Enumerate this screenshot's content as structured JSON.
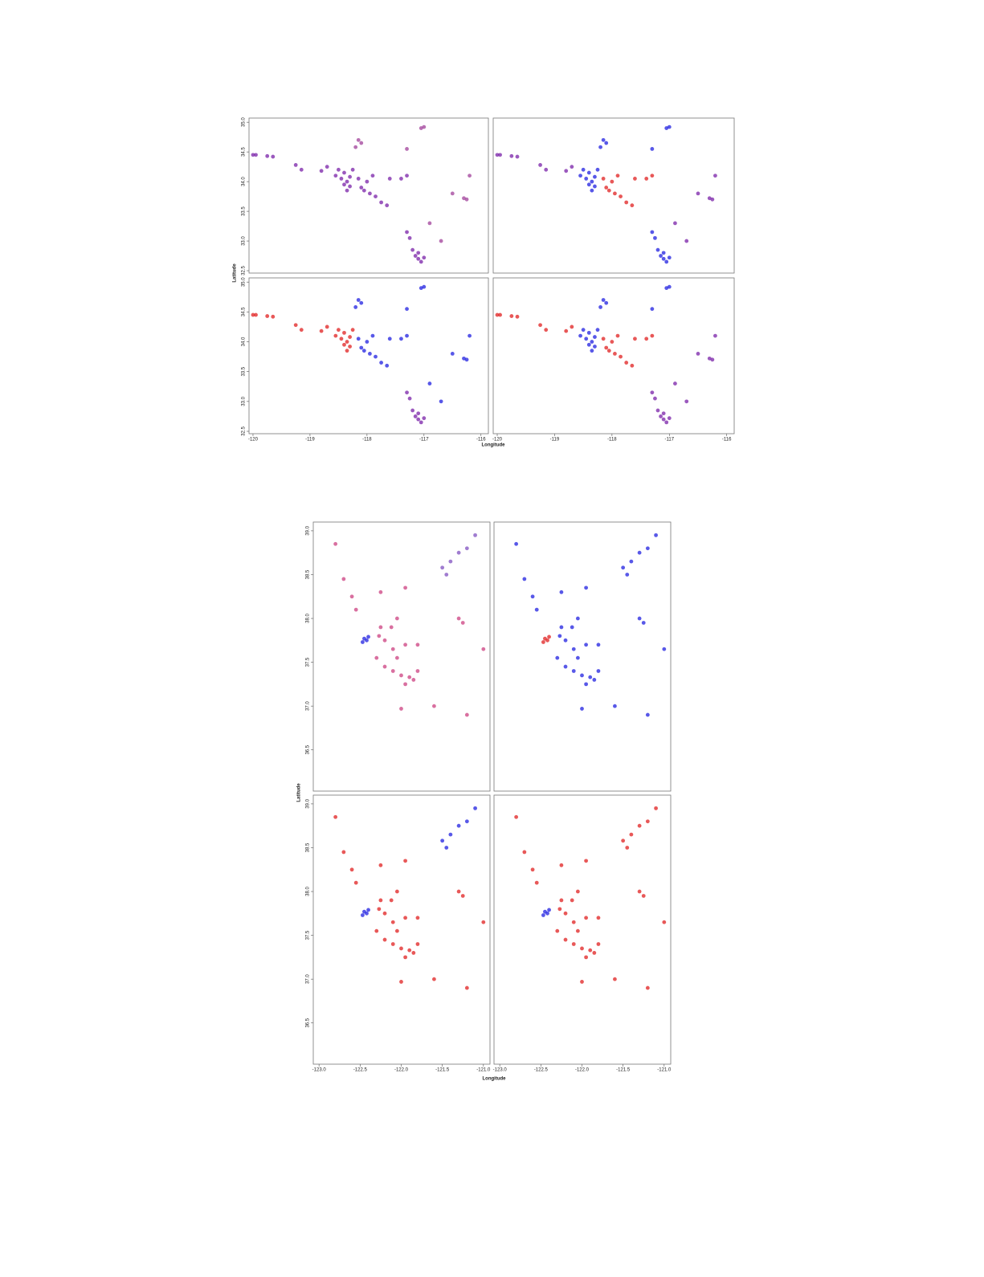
{
  "chart_data": [
    {
      "type": "scatter",
      "xlim": [
        -120.07,
        -115.87
      ],
      "ylim": [
        32.46,
        35.07
      ],
      "yticks": [
        {
          "value": 35,
          "label": "35.0"
        },
        34.5,
        {
          "value": 34,
          "label": "34.0"
        },
        33.5,
        {
          "value": 33,
          "label": "33.0"
        },
        32.5
      ],
      "series": [
        {
          "color": "#7a22a8",
          "x": [
            -118.45,
            -118.4,
            -118.35,
            -118.3,
            -118.3,
            -118.25,
            -118.4,
            -118.5,
            -118.55,
            -118.35,
            -118.15,
            -118.1,
            -118.0,
            -117.95,
            -117.85,
            -117.75,
            -117.9,
            -118.05,
            -117.6,
            -117.4,
            -117.3,
            -117.65,
            -119.75,
            -119.65,
            -119.25,
            -119.15,
            -118.8,
            -118.7,
            -120.0,
            -119.95,
            -117.15,
            -117.1,
            -117.2,
            -117.05,
            -117.25,
            -117.3,
            -117.1,
            -117.0
          ],
          "y": [
            34.05,
            34.15,
            34.0,
            34.08,
            33.92,
            34.2,
            33.95,
            34.2,
            34.1,
            33.85,
            34.05,
            33.9,
            34.0,
            33.8,
            33.75,
            33.65,
            34.1,
            33.85,
            34.05,
            34.05,
            34.1,
            33.6,
            34.43,
            34.42,
            34.28,
            34.2,
            34.18,
            34.25,
            34.45,
            34.45,
            32.75,
            32.7,
            32.85,
            32.65,
            33.05,
            33.15,
            32.8,
            32.72
          ]
        },
        {
          "color": "#a0409a",
          "x": [
            -118.15,
            -118.1,
            -117.3,
            -117.05,
            -117.0,
            -118.2,
            -116.5,
            -116.3,
            -116.25,
            -116.9,
            -116.7,
            -116.2
          ],
          "y": [
            34.7,
            34.65,
            34.55,
            34.9,
            34.92,
            34.58,
            33.8,
            33.72,
            33.7,
            33.3,
            33.0,
            34.1
          ]
        }
      ]
    },
    {
      "type": "scatter",
      "xlim": [
        -120.07,
        -115.87
      ],
      "ylim": [
        32.46,
        35.07
      ],
      "series": [
        {
          "color": "#2020e0",
          "x": [
            -118.45,
            -118.4,
            -118.35,
            -118.3,
            -118.3,
            -118.25,
            -118.4,
            -118.5,
            -118.55,
            -118.35,
            -117.15,
            -117.1,
            -117.2,
            -117.05,
            -117.25,
            -117.3,
            -117.1,
            -117.0,
            -118.15,
            -118.1,
            -117.3,
            -117.05,
            -117.0,
            -118.2
          ],
          "y": [
            34.05,
            34.15,
            34.0,
            34.08,
            33.92,
            34.2,
            33.95,
            34.2,
            34.1,
            33.85,
            32.75,
            32.7,
            32.85,
            32.65,
            33.05,
            33.15,
            32.8,
            32.72,
            34.7,
            34.65,
            34.55,
            34.9,
            34.92,
            34.58
          ]
        },
        {
          "color": "#e02020",
          "x": [
            -118.15,
            -118.1,
            -118.0,
            -117.95,
            -117.85,
            -117.75,
            -117.9,
            -118.05,
            -117.6,
            -117.4,
            -117.3,
            -117.65
          ],
          "y": [
            34.05,
            33.9,
            34.0,
            33.8,
            33.75,
            33.65,
            34.1,
            33.85,
            34.05,
            34.05,
            34.1,
            33.6
          ]
        },
        {
          "color": "#7a22a8",
          "x": [
            -119.75,
            -119.65,
            -119.25,
            -119.15,
            -118.8,
            -118.7,
            -120.0,
            -119.95,
            -116.5,
            -116.3,
            -116.25,
            -116.9,
            -116.7,
            -116.2
          ],
          "y": [
            34.43,
            34.42,
            34.28,
            34.2,
            34.18,
            34.25,
            34.45,
            34.45,
            33.8,
            33.72,
            33.7,
            33.3,
            33.0,
            34.1
          ]
        }
      ]
    },
    {
      "type": "scatter",
      "xlim": [
        -120.07,
        -115.87
      ],
      "ylim": [
        32.46,
        35.07
      ],
      "xticks": [
        -120,
        -119,
        -118,
        -117,
        -116
      ],
      "yticks": [
        {
          "value": 35,
          "label": "35.0"
        },
        34.5,
        {
          "value": 34,
          "label": "34.0"
        },
        33.5,
        {
          "value": 33,
          "label": "33.0"
        },
        32.5
      ],
      "xlabel": "Longitude",
      "ylabel": "Latitude",
      "series": [
        {
          "color": "#e02020",
          "x": [
            -118.45,
            -118.4,
            -118.35,
            -118.3,
            -118.3,
            -118.25,
            -118.4,
            -118.5,
            -118.55,
            -118.35,
            -119.75,
            -119.65,
            -119.25,
            -119.15,
            -118.8,
            -118.7,
            -120.0,
            -119.95
          ],
          "y": [
            34.05,
            34.15,
            34.0,
            34.08,
            33.92,
            34.2,
            33.95,
            34.2,
            34.1,
            33.85,
            34.43,
            34.42,
            34.28,
            34.2,
            34.18,
            34.25,
            34.45,
            34.45
          ]
        },
        {
          "color": "#2020e0",
          "x": [
            -118.15,
            -118.1,
            -118.0,
            -117.95,
            -117.85,
            -117.75,
            -117.9,
            -118.05,
            -117.6,
            -117.4,
            -117.3,
            -117.65,
            -118.15,
            -118.1,
            -117.3,
            -117.05,
            -117.0,
            -118.2,
            -116.5,
            -116.3,
            -116.25,
            -116.9,
            -116.7,
            -116.2
          ],
          "y": [
            34.05,
            33.9,
            34.0,
            33.8,
            33.75,
            33.65,
            34.1,
            33.85,
            34.05,
            34.05,
            34.1,
            33.6,
            34.7,
            34.65,
            34.55,
            34.9,
            34.92,
            34.58,
            33.8,
            33.72,
            33.7,
            33.3,
            33.0,
            34.1
          ]
        },
        {
          "color": "#7a22a8",
          "x": [
            -117.15,
            -117.1,
            -117.2,
            -117.05,
            -117.25,
            -117.3,
            -117.1,
            -117.0
          ],
          "y": [
            32.75,
            32.7,
            32.85,
            32.65,
            33.05,
            33.15,
            32.8,
            32.72
          ]
        }
      ]
    },
    {
      "type": "scatter",
      "xlim": [
        -120.07,
        -115.87
      ],
      "ylim": [
        32.46,
        35.07
      ],
      "xticks": [
        -120,
        -119,
        -118,
        -117,
        -116
      ],
      "series": [
        {
          "color": "#2020e0",
          "x": [
            -118.45,
            -118.4,
            -118.35,
            -118.3,
            -118.3,
            -118.25,
            -118.4,
            -118.5,
            -118.55,
            -118.35,
            -118.15,
            -118.1,
            -117.3,
            -117.05,
            -117.0,
            -118.2
          ],
          "y": [
            34.05,
            34.15,
            34.0,
            34.08,
            33.92,
            34.2,
            33.95,
            34.2,
            34.1,
            33.85,
            34.7,
            34.65,
            34.55,
            34.9,
            34.92,
            34.58
          ]
        },
        {
          "color": "#e02020",
          "x": [
            -118.15,
            -118.1,
            -118.0,
            -117.95,
            -117.85,
            -117.75,
            -117.9,
            -118.05,
            -117.6,
            -117.4,
            -117.3,
            -117.65,
            -119.75,
            -119.65,
            -119.25,
            -119.15,
            -118.8,
            -118.7,
            -120.0,
            -119.95
          ],
          "y": [
            34.05,
            33.9,
            34.0,
            33.8,
            33.75,
            33.65,
            34.1,
            33.85,
            34.05,
            34.05,
            34.1,
            33.6,
            34.43,
            34.42,
            34.28,
            34.2,
            34.18,
            34.25,
            34.45,
            34.45
          ]
        },
        {
          "color": "#7a22a8",
          "x": [
            -117.15,
            -117.1,
            -117.2,
            -117.05,
            -117.25,
            -117.3,
            -117.1,
            -117.0,
            -116.5,
            -116.3,
            -116.25,
            -116.9,
            -116.7,
            -116.2
          ],
          "y": [
            32.75,
            32.7,
            32.85,
            32.65,
            33.05,
            33.15,
            32.8,
            32.72,
            33.8,
            33.72,
            33.7,
            33.3,
            33.0,
            34.1
          ]
        }
      ]
    },
    {
      "type": "scatter",
      "xlim": [
        -123.07,
        -120.92
      ],
      "ylim": [
        36.03,
        39.1
      ],
      "yticks": [
        {
          "value": 39,
          "label": "39.0"
        },
        38.5,
        {
          "value": 38,
          "label": "38.0"
        },
        37.5,
        {
          "value": 37,
          "label": "37.0"
        },
        36.5
      ],
      "series": [
        {
          "color": "#cc4080",
          "x": [
            -122.27,
            -122.2,
            -122.1,
            -122.05,
            -122.25,
            -122.12,
            -121.95,
            -121.8,
            -122.3,
            -122.2,
            -122.1,
            -122.0,
            -121.9,
            -121.85,
            -121.95,
            -121.8,
            -122.55,
            -122.7,
            -122.25,
            -121.95,
            -122.05,
            -122.6,
            -122.8,
            -122.0,
            -121.6,
            -121.2,
            -121.3,
            -121.0,
            -121.25
          ],
          "y": [
            37.8,
            37.75,
            37.65,
            37.55,
            37.9,
            37.9,
            37.7,
            37.7,
            37.55,
            37.45,
            37.4,
            37.35,
            37.33,
            37.3,
            37.25,
            37.4,
            38.1,
            38.45,
            38.3,
            38.35,
            38.0,
            38.25,
            38.85,
            36.97,
            37.0,
            36.9,
            38.0,
            37.65,
            37.95
          ]
        },
        {
          "color": "#2020e0",
          "x": [
            -122.45,
            -122.42,
            -122.4,
            -122.47
          ],
          "y": [
            37.77,
            37.75,
            37.79,
            37.73
          ]
        },
        {
          "color": "#8050c0",
          "x": [
            -121.5,
            -121.4,
            -121.3,
            -121.45,
            -121.2,
            -121.1
          ],
          "y": [
            38.58,
            38.65,
            38.75,
            38.5,
            38.8,
            38.95
          ]
        }
      ]
    },
    {
      "type": "scatter",
      "xlim": [
        -123.07,
        -120.92
      ],
      "ylim": [
        36.03,
        39.1
      ],
      "series": [
        {
          "color": "#2020e0",
          "x": [
            -122.27,
            -122.2,
            -122.1,
            -122.05,
            -122.25,
            -122.12,
            -121.95,
            -121.8,
            -122.3,
            -122.2,
            -122.1,
            -122.0,
            -121.9,
            -121.85,
            -121.95,
            -121.8,
            -122.55,
            -122.7,
            -122.25,
            -121.95,
            -122.05,
            -122.6,
            -122.8,
            -121.5,
            -121.4,
            -121.3,
            -121.45,
            -121.2,
            -121.1,
            -122.0,
            -121.6,
            -121.2,
            -121.3,
            -121.0,
            -121.25
          ],
          "y": [
            37.8,
            37.75,
            37.65,
            37.55,
            37.9,
            37.9,
            37.7,
            37.7,
            37.55,
            37.45,
            37.4,
            37.35,
            37.33,
            37.3,
            37.25,
            37.4,
            38.1,
            38.45,
            38.3,
            38.35,
            38.0,
            38.25,
            38.85,
            38.58,
            38.65,
            38.75,
            38.5,
            38.8,
            38.95,
            36.97,
            37.0,
            36.9,
            38.0,
            37.65,
            37.95
          ]
        },
        {
          "color": "#e02020",
          "x": [
            -122.45,
            -122.42,
            -122.4,
            -122.47
          ],
          "y": [
            37.77,
            37.75,
            37.79,
            37.73
          ]
        }
      ]
    },
    {
      "type": "scatter",
      "xlim": [
        -123.07,
        -120.92
      ],
      "ylim": [
        36.03,
        39.1
      ],
      "xticks": [
        {
          "value": -123,
          "label": "-123.0"
        },
        -122.5,
        {
          "value": -122,
          "label": "-122.0"
        },
        -121.5,
        {
          "value": -121,
          "label": "-121.0"
        }
      ],
      "yticks": [
        {
          "value": 39,
          "label": "39.0"
        },
        38.5,
        {
          "value": 38,
          "label": "38.0"
        },
        37.5,
        {
          "value": 37,
          "label": "37.0"
        },
        36.5
      ],
      "xlabel": "Longitude",
      "ylabel": "Latitude",
      "series": [
        {
          "color": "#e02020",
          "x": [
            -122.27,
            -122.2,
            -122.1,
            -122.05,
            -122.25,
            -122.12,
            -121.95,
            -121.8,
            -122.3,
            -122.2,
            -122.1,
            -122.0,
            -121.9,
            -121.85,
            -121.95,
            -121.8,
            -122.55,
            -122.7,
            -122.25,
            -121.95,
            -122.05,
            -122.6,
            -122.8,
            -122.0,
            -121.6,
            -121.2,
            -121.3,
            -121.0,
            -121.25
          ],
          "y": [
            37.8,
            37.75,
            37.65,
            37.55,
            37.9,
            37.9,
            37.7,
            37.7,
            37.55,
            37.45,
            37.4,
            37.35,
            37.33,
            37.3,
            37.25,
            37.4,
            38.1,
            38.45,
            38.3,
            38.35,
            38.0,
            38.25,
            38.85,
            36.97,
            37.0,
            36.9,
            38.0,
            37.65,
            37.95
          ]
        },
        {
          "color": "#2020e0",
          "x": [
            -122.45,
            -122.42,
            -122.4,
            -122.47,
            -121.5,
            -121.4,
            -121.3,
            -121.45,
            -121.2,
            -121.1
          ],
          "y": [
            37.77,
            37.75,
            37.79,
            37.73,
            38.58,
            38.65,
            38.75,
            38.5,
            38.8,
            38.95
          ]
        }
      ]
    },
    {
      "type": "scatter",
      "xlim": [
        -123.07,
        -120.92
      ],
      "ylim": [
        36.03,
        39.1
      ],
      "xticks": [
        {
          "value": -123,
          "label": "-123.0"
        },
        -122.5,
        {
          "value": -122,
          "label": "-122.0"
        },
        -121.5,
        {
          "value": -121,
          "label": "-121.0"
        }
      ],
      "series": [
        {
          "color": "#e02020",
          "x": [
            -122.27,
            -122.2,
            -122.1,
            -122.05,
            -122.25,
            -122.12,
            -121.95,
            -121.8,
            -122.3,
            -122.2,
            -122.1,
            -122.0,
            -121.9,
            -121.85,
            -121.95,
            -121.8,
            -122.55,
            -122.7,
            -122.25,
            -121.95,
            -122.05,
            -122.6,
            -122.8,
            -121.5,
            -121.4,
            -121.3,
            -121.45,
            -121.2,
            -121.1,
            -122.0,
            -121.6,
            -121.2,
            -121.3,
            -121.0,
            -121.25
          ],
          "y": [
            37.8,
            37.75,
            37.65,
            37.55,
            37.9,
            37.9,
            37.7,
            37.7,
            37.55,
            37.45,
            37.4,
            37.35,
            37.33,
            37.3,
            37.25,
            37.4,
            38.1,
            38.45,
            38.3,
            38.35,
            38.0,
            38.25,
            38.85,
            38.58,
            38.65,
            38.75,
            38.5,
            38.8,
            38.95,
            36.97,
            37.0,
            36.9,
            38.0,
            37.65,
            37.95
          ]
        },
        {
          "color": "#2020e0",
          "x": [
            -122.45,
            -122.42,
            -122.4,
            -122.47
          ],
          "y": [
            37.77,
            37.75,
            37.79,
            37.73
          ]
        }
      ]
    }
  ]
}
